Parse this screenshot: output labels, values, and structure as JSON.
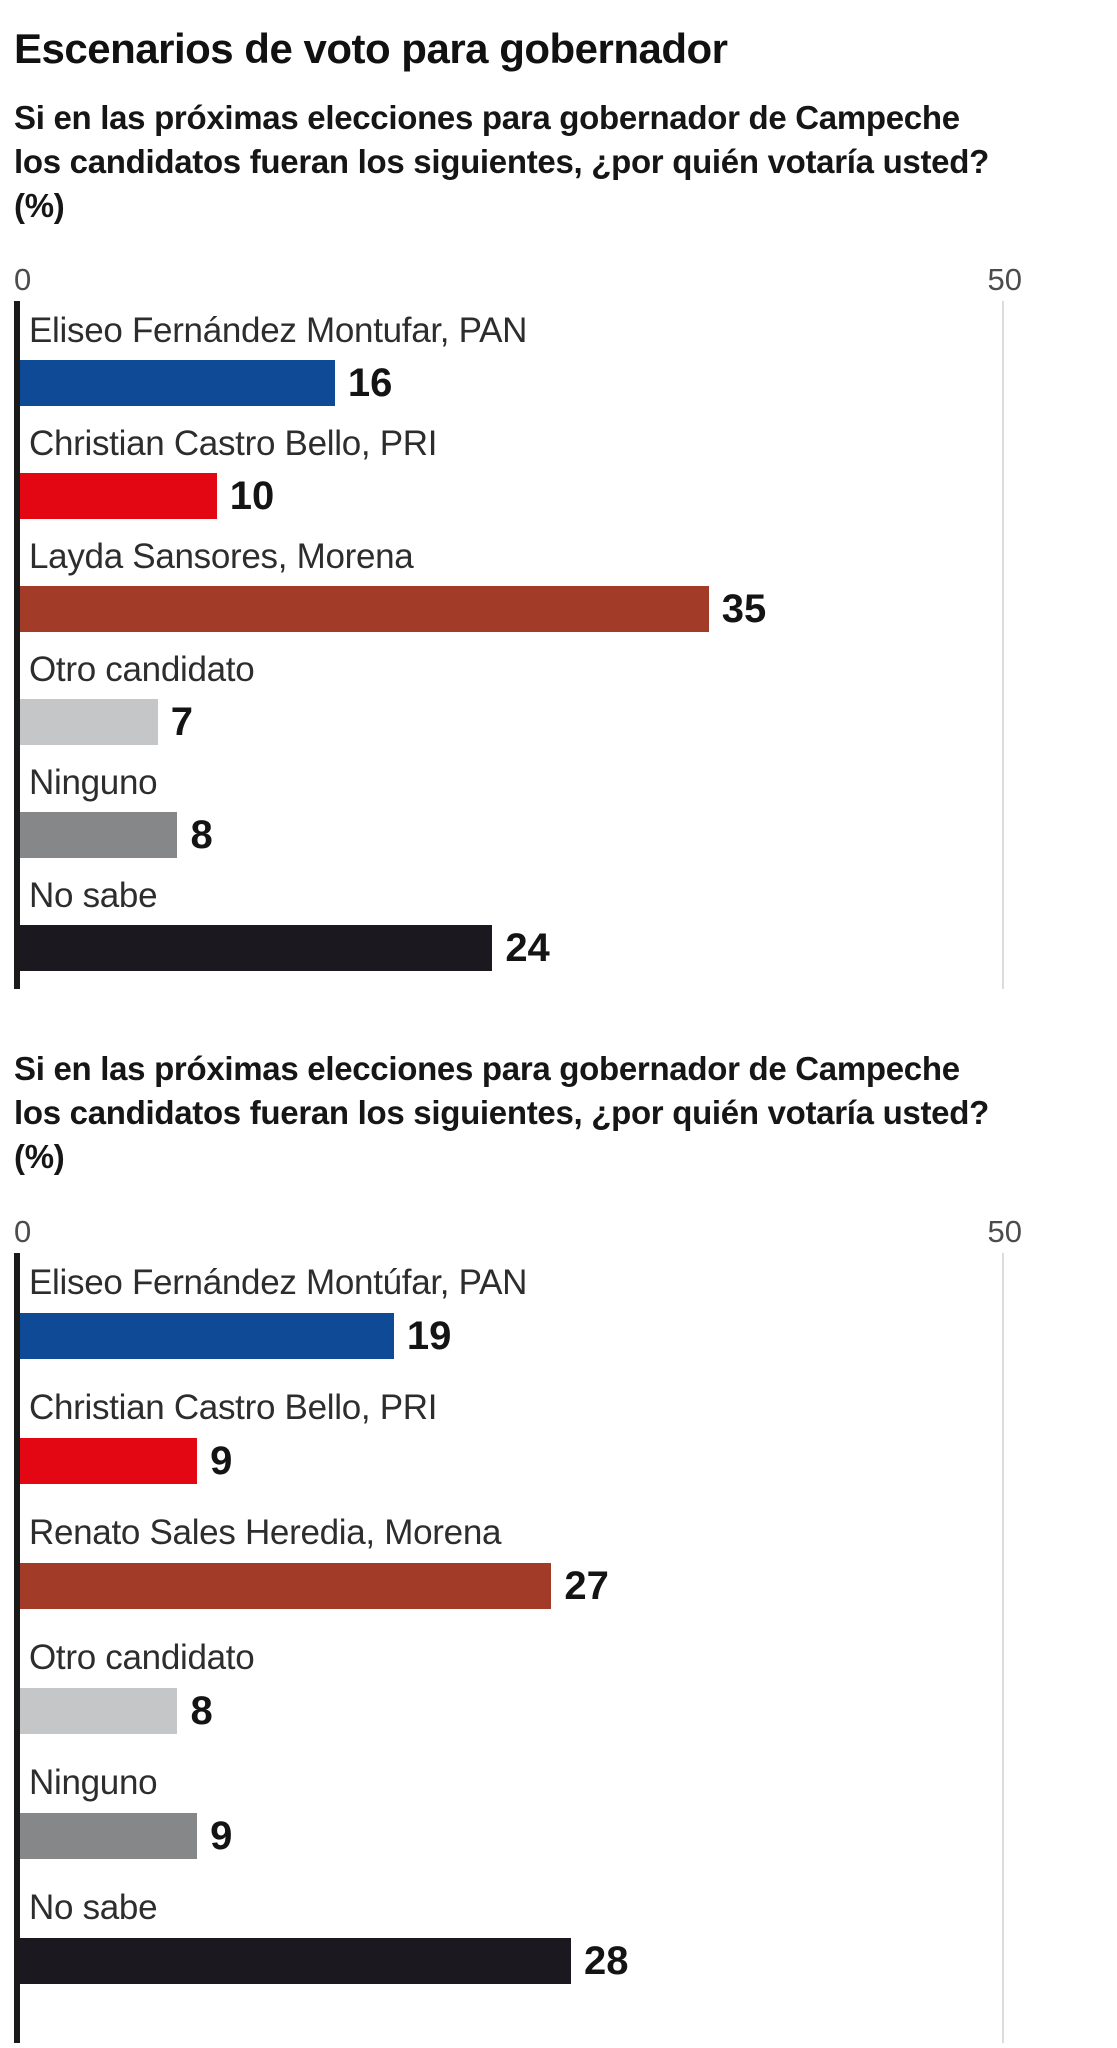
{
  "page": {
    "title": "Escenarios de voto para gobernador"
  },
  "style": {
    "axis_color": "#1A1A1A",
    "gridline_color": "#DCDCDC",
    "tick_color": "#4C4C4C",
    "label_color": "#2D2D2D",
    "value_color": "#141414",
    "background": "#FFFFFF"
  },
  "chart_data": [
    {
      "type": "bar",
      "orientation": "horizontal",
      "question": "Si en las próximas elecciones para gobernador de Campeche los candidatos fueran los siguientes, ¿por quién votaría usted? (%)",
      "xlim": [
        0,
        50
      ],
      "tick_labels": [
        "0",
        "50"
      ],
      "grid": "single vertical gridline at 50",
      "legend": false,
      "categories": [
        "Eliseo Fernández Montufar, PAN",
        "Christian Castro Bello, PRI",
        "Layda Sansores, Morena",
        "Otro candidato",
        "Ninguno",
        "No sabe"
      ],
      "values": [
        16,
        10,
        35,
        7,
        8,
        24
      ],
      "bar_colors": [
        "#0E4A96",
        "#E30613",
        "#A23B28",
        "#C5C6C8",
        "#868789",
        "#1B181F"
      ]
    },
    {
      "type": "bar",
      "orientation": "horizontal",
      "question": "Si en las próximas elecciones para gobernador de Campeche los candidatos fueran los siguientes, ¿por quién votaría usted? (%)",
      "xlim": [
        0,
        50
      ],
      "tick_labels": [
        "0",
        "50"
      ],
      "grid": "single vertical gridline at 50",
      "legend": false,
      "categories": [
        "Eliseo Fernández Montúfar, PAN",
        "Christian Castro Bello, PRI",
        "Renato Sales Heredia, Morena",
        "Otro candidato",
        "Ninguno",
        "No sabe"
      ],
      "values": [
        19,
        9,
        27,
        8,
        9,
        28
      ],
      "bar_colors": [
        "#0E4A96",
        "#E30613",
        "#A23B28",
        "#C5C6C8",
        "#868789",
        "#1B181F"
      ]
    }
  ]
}
